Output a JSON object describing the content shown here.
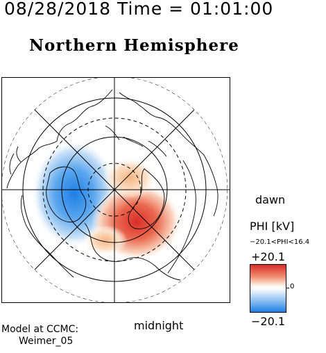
{
  "header": {
    "timestamp": "08/28/2018 Time = 01:01:00",
    "hemisphere_title": "Northern Hemisphere"
  },
  "map": {
    "projection": "polar view centered on the north magnetic pole",
    "labels": {
      "dawn": "dawn",
      "midnight": "midnight"
    },
    "potential_pattern": {
      "negative_cell": "dusk / left side, blue",
      "positive_cell": "dawn / lower-right side, red"
    }
  },
  "colorbar": {
    "title": "PHI [kV]",
    "range_label": "−20.1<PHI<16.4",
    "max_label": "+20.1",
    "zero_label": "0",
    "min_label": "−20.1",
    "colors": {
      "max": "#d92d28",
      "mid": "#ffffff",
      "min": "#1e7fe6"
    }
  },
  "credits": {
    "line1": "Model at CCMC:",
    "line2": "Weimer_05"
  }
}
